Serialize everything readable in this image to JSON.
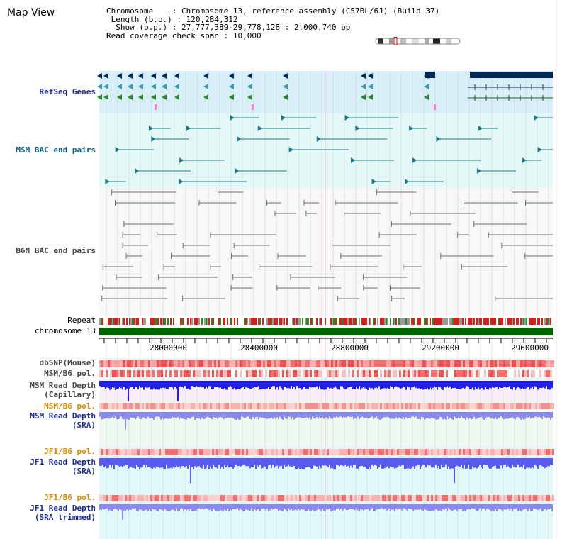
{
  "header": {
    "title": "Map View",
    "chromosome_key": "Chromosome",
    "chromosome_value": "Chromosome 13, reference assembly (C57BL/6J) (Build 37)",
    "length_key": "Length (b.p.)",
    "length_value": "120,284,312",
    "show_key": "Show (b.p.)",
    "show_value": "27,777,389-29,778,128 : 2,000,740 bp",
    "coverage_key": "Read coverage check span",
    "coverage_value": "10,000"
  },
  "tracks": {
    "refseq": "RefSeq Genes",
    "msm_bac": "MSM BAC end pairs",
    "b6n_bac": "B6N BAC end pairs",
    "repeat": "Repeat",
    "chromosome": "chromosome 13",
    "dbsnp": "dbSNP(Mouse)",
    "msm_pol1": "MSM/B6 pol.",
    "msm_depth_cap_1": "MSM Read Depth",
    "msm_depth_cap_2": "(Capillary)",
    "msm_pol2": "MSM/B6 pol.",
    "msm_depth_sra_1": "MSM Read Depth",
    "msm_depth_sra_2": "(SRA)",
    "jf1_pol1": "JF1/B6 pol.",
    "jf1_depth_sra_1": "JF1 Read Depth",
    "jf1_depth_sra_2": "(SRA)",
    "jf1_pol2": "JF1/B6 pol.",
    "jf1_depth_trim_1": "JF1 Read Depth",
    "jf1_depth_trim_2": "(SRA trimmed)"
  },
  "axis": {
    "ticks": [
      "28000000",
      "28400000",
      "28800000",
      "29200000",
      "29600000"
    ]
  },
  "colors": {
    "refseq_bg": "#d8eef8",
    "bac_bg": "#e4f8f8",
    "chromosome": "#006600",
    "gene_dark": "#002a55",
    "msm_teal": "#1a7a8a",
    "b6n_gray": "#6e6e6e",
    "depth_blue": "#2020e8",
    "depth_light": "#8a8aee"
  }
}
